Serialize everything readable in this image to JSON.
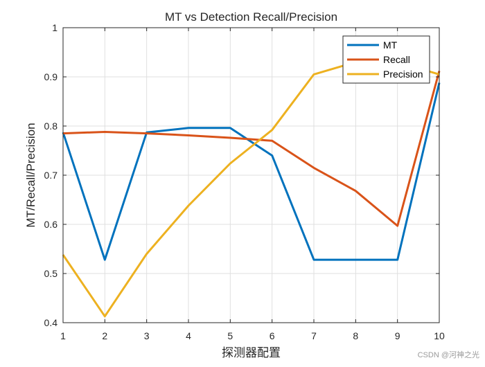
{
  "chart_data": {
    "type": "line",
    "title": "MT vs Detection Recall/Precision",
    "xlabel": "探测器配置",
    "ylabel": "MT/Recall/Precision",
    "x": [
      1,
      2,
      3,
      4,
      5,
      6,
      7,
      8,
      9,
      10
    ],
    "xlim": [
      1,
      10
    ],
    "ylim": [
      0.4,
      1.0
    ],
    "xticks": [
      1,
      2,
      3,
      4,
      5,
      6,
      7,
      8,
      9,
      10
    ],
    "yticks": [
      0.4,
      0.5,
      0.6,
      0.7,
      0.8,
      0.9,
      1.0
    ],
    "xtick_labels": [
      "1",
      "2",
      "3",
      "4",
      "5",
      "6",
      "7",
      "8",
      "9",
      "10"
    ],
    "ytick_labels": [
      "0.4",
      "0.5",
      "0.6",
      "0.7",
      "0.8",
      "0.9",
      "1"
    ],
    "grid": true,
    "legend_position": "top-right",
    "series": [
      {
        "name": "MT",
        "color": "#0072BD",
        "values": [
          0.787,
          0.528,
          0.787,
          0.796,
          0.796,
          0.74,
          0.528,
          0.528,
          0.528,
          0.888
        ]
      },
      {
        "name": "Recall",
        "color": "#D95319",
        "values": [
          0.785,
          0.788,
          0.785,
          0.781,
          0.776,
          0.77,
          0.715,
          0.668,
          0.597,
          0.912
        ]
      },
      {
        "name": "Precision",
        "color": "#EDB120",
        "values": [
          0.538,
          0.413,
          0.54,
          0.638,
          0.724,
          0.792,
          0.905,
          0.93,
          0.93,
          0.905
        ]
      }
    ]
  },
  "watermark": "CSDN @河神之光"
}
